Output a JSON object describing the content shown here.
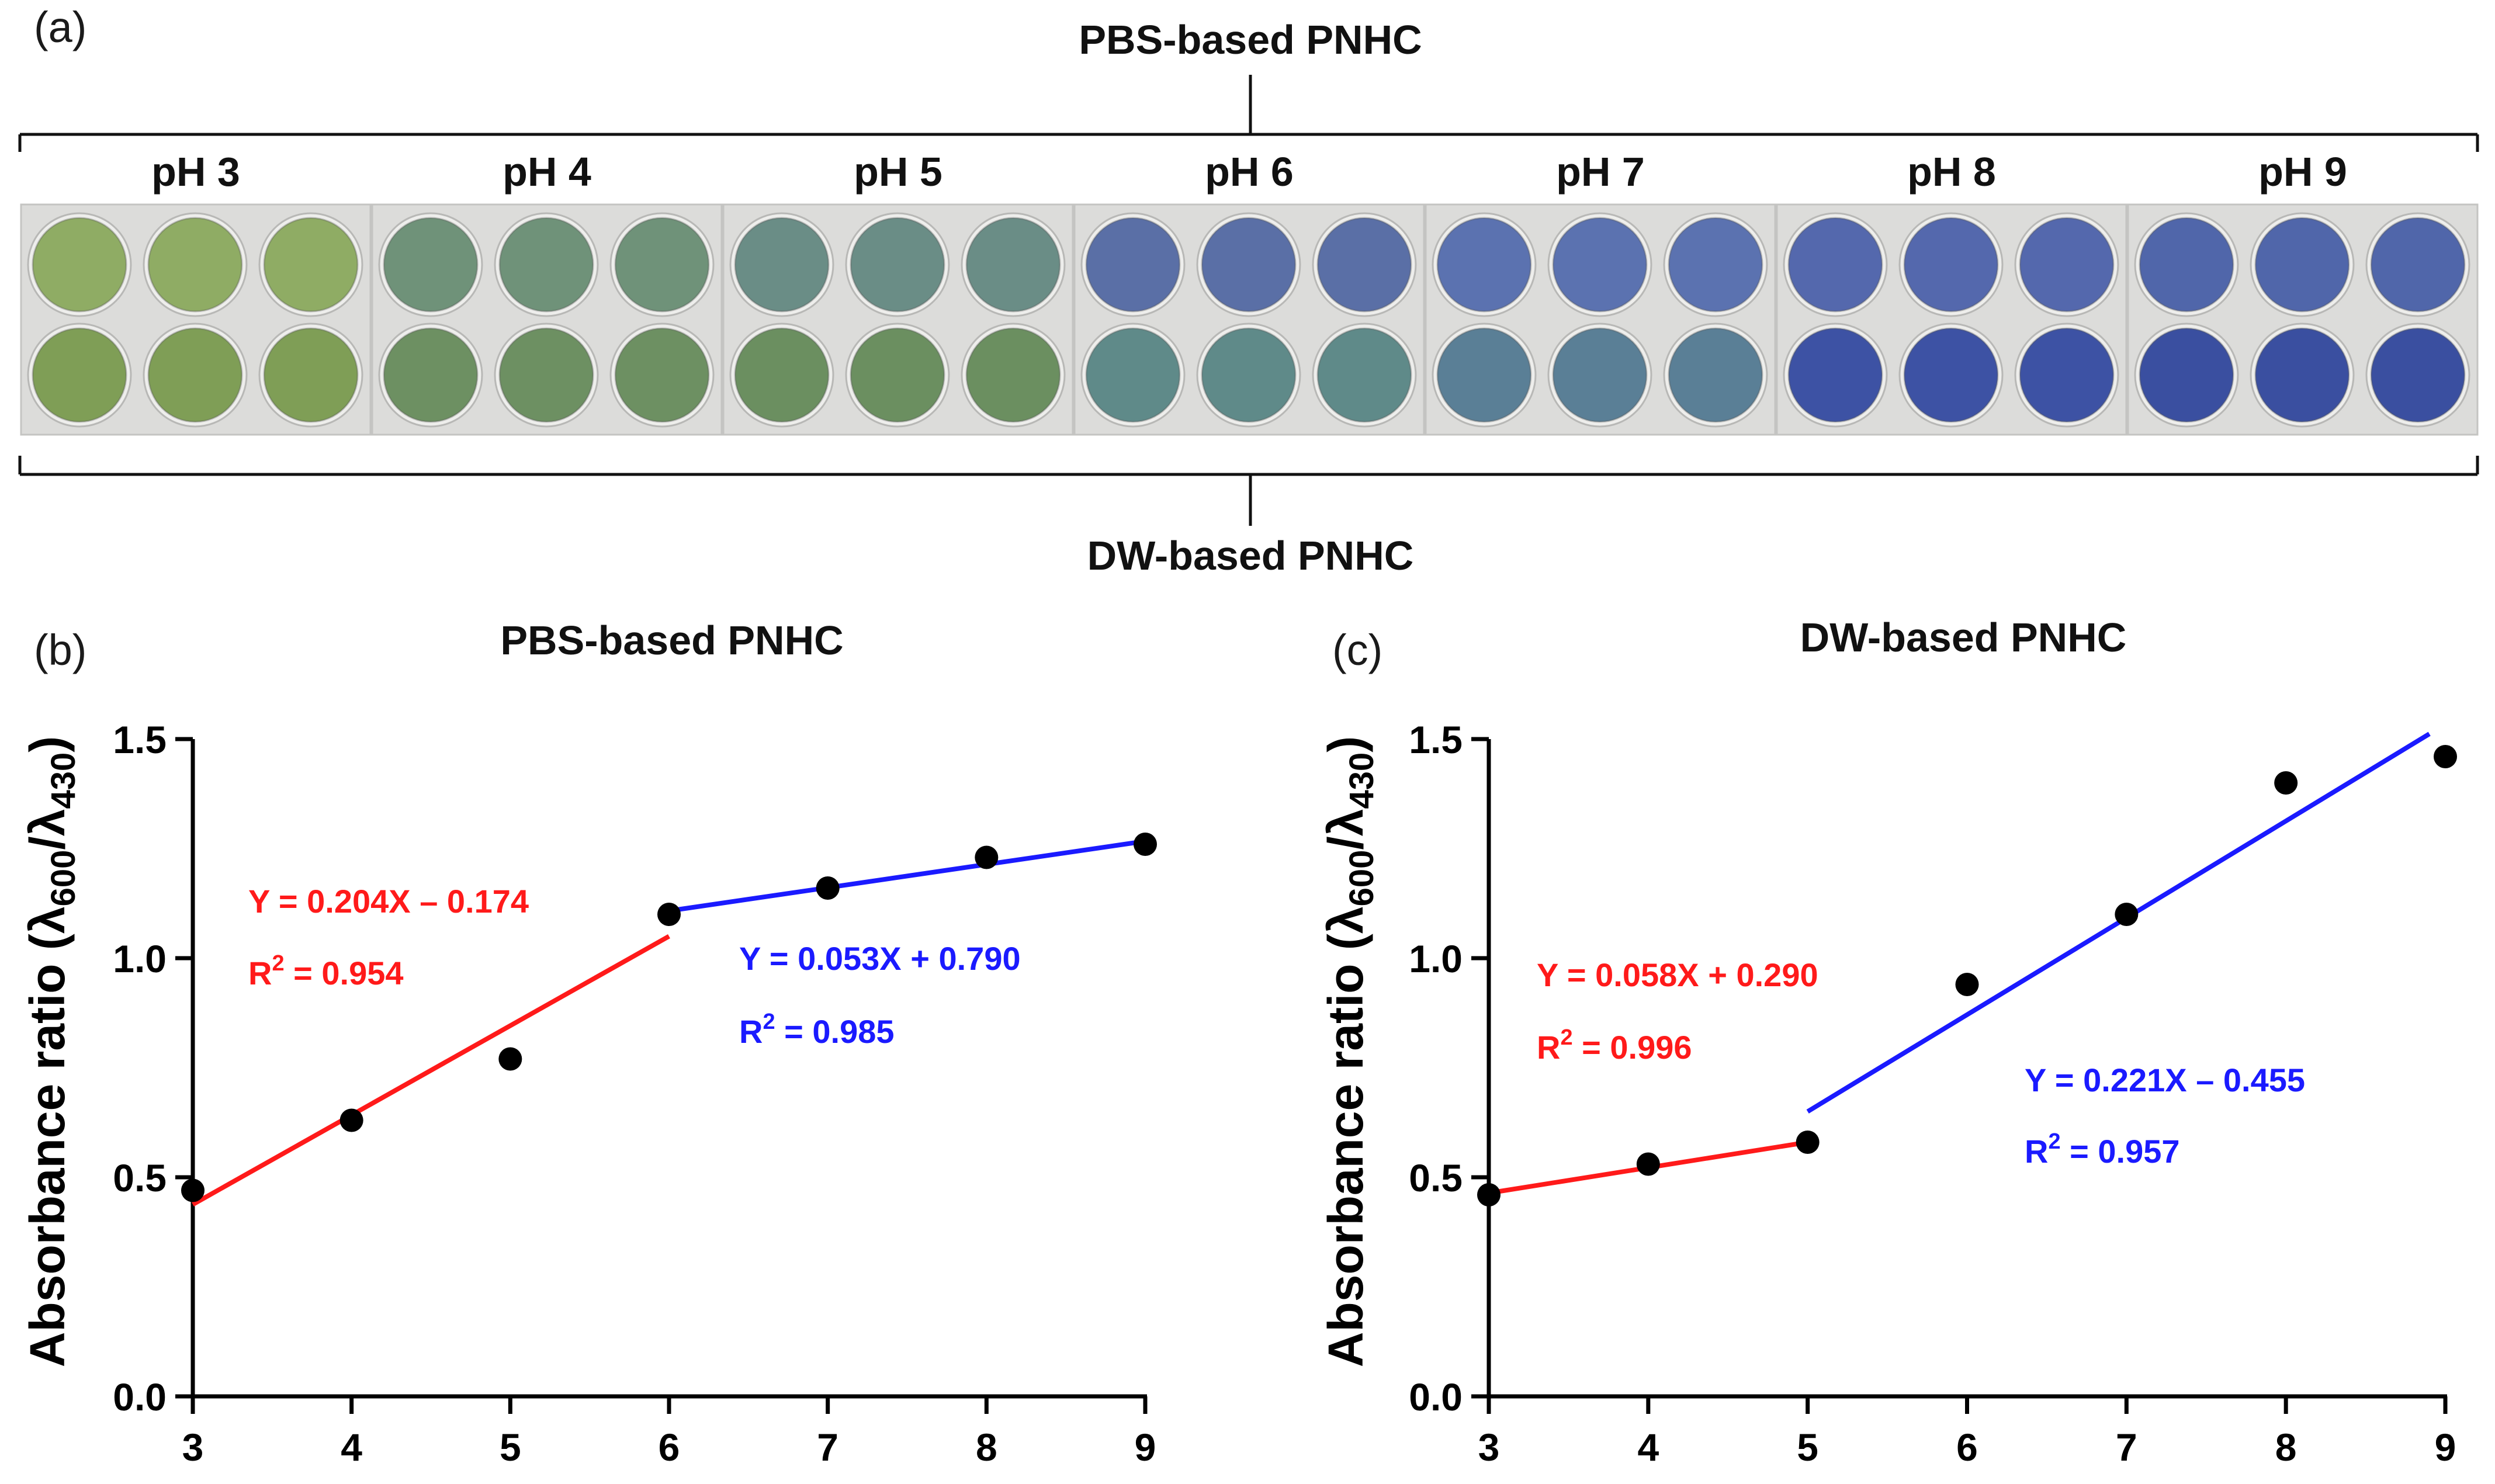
{
  "panel_a": {
    "label": "(a)",
    "top_title": "PBS-based PNHC",
    "bottom_title": "DW-based PNHC",
    "plates": [
      {
        "label": "pH 3",
        "top_color": "#8fac64",
        "bottom_color": "#7f9e56"
      },
      {
        "label": "pH 4",
        "top_color": "#6f9279",
        "bottom_color": "#6d9062"
      },
      {
        "label": "pH 5",
        "top_color": "#6a8d86",
        "bottom_color": "#6b8f60"
      },
      {
        "label": "pH 6",
        "top_color": "#5a6fa6",
        "bottom_color": "#5f8a89"
      },
      {
        "label": "pH 7",
        "top_color": "#5b72b0",
        "bottom_color": "#5a7f96"
      },
      {
        "label": "pH 8",
        "top_color": "#5468ad",
        "bottom_color": "#3d52a4"
      },
      {
        "label": "pH 9",
        "top_color": "#5066aa",
        "bottom_color": "#3a4fa0"
      }
    ]
  },
  "chart_data": [
    {
      "type": "scatter",
      "panel_label": "(b)",
      "title": "PBS-based PNHC",
      "ylabel_main": "Absorbance ratio (λ",
      "ylabel_sub1": "600",
      "ylabel_mid": "/λ",
      "ylabel_sub2": "430",
      "ylabel_end": ")",
      "xlim": [
        3,
        9
      ],
      "ylim": [
        0,
        1.5
      ],
      "x_ticks": [
        "3",
        "4",
        "5",
        "6",
        "7",
        "8",
        "9"
      ],
      "y_ticks": [
        "0.0",
        "0.5",
        "1.0",
        "1.5"
      ],
      "points": {
        "x": [
          3,
          4,
          5,
          6,
          7,
          8,
          9
        ],
        "y": [
          0.47,
          0.63,
          0.77,
          1.1,
          1.16,
          1.23,
          1.26
        ]
      },
      "fits": [
        {
          "x_range": [
            3,
            6
          ],
          "slope": 0.204,
          "intercept": -0.174,
          "color": "#ff1a1a",
          "eq": "Y  = 0.204X – 0.174",
          "r2_prefix": "R",
          "r2_sup": "2",
          "r2_value": " = 0.954"
        },
        {
          "x_range": [
            6,
            9
          ],
          "slope": 0.053,
          "intercept": 0.79,
          "color": "#1a1aff",
          "eq": "Y  = 0.053X + 0.790",
          "r2_prefix": "R",
          "r2_sup": "2",
          "r2_value": " = 0.985"
        }
      ]
    },
    {
      "type": "scatter",
      "panel_label": "(c)",
      "title": "DW-based PNHC",
      "ylabel_main": "Absorbance ratio (λ",
      "ylabel_sub1": "600",
      "ylabel_mid": "/λ",
      "ylabel_sub2": "430",
      "ylabel_end": ")",
      "xlim": [
        3,
        9
      ],
      "ylim": [
        0,
        1.5
      ],
      "x_ticks": [
        "3",
        "4",
        "5",
        "6",
        "7",
        "8",
        "9"
      ],
      "y_ticks": [
        "0.0",
        "0.5",
        "1.0",
        "1.5"
      ],
      "points": {
        "x": [
          3,
          4,
          5,
          6,
          7,
          8,
          9
        ],
        "y": [
          0.46,
          0.53,
          0.58,
          0.94,
          1.1,
          1.4,
          1.46
        ]
      },
      "fits": [
        {
          "x_range": [
            3,
            5
          ],
          "slope": 0.058,
          "intercept": 0.29,
          "color": "#ff1a1a",
          "eq": "Y  = 0.058X + 0.290",
          "r2_prefix": "R",
          "r2_sup": "2",
          "r2_value": " = 0.996"
        },
        {
          "x_range": [
            5,
            8.9
          ],
          "slope": 0.221,
          "intercept": -0.455,
          "color": "#1a1aff",
          "eq": "Y  = 0.221X – 0.455",
          "r2_prefix": "R",
          "r2_sup": "2",
          "r2_value": " = 0.957"
        }
      ]
    }
  ]
}
